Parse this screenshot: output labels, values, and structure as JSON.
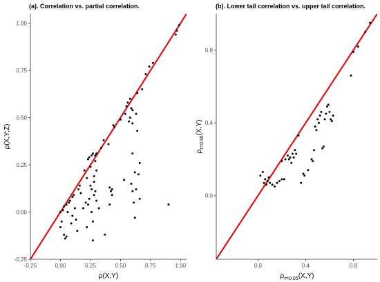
{
  "chart_data": [
    {
      "type": "scatter",
      "title": "(a). Correlation vs. partial correlation.",
      "xlabel": "ρ(X,Y)",
      "ylabel": "ρ(X,Y;Z)",
      "xlim": [
        -0.25,
        1.05
      ],
      "ylim": [
        -0.25,
        1.05
      ],
      "xticks": [
        -0.25,
        0.0,
        0.25,
        0.5,
        0.75,
        1.0
      ],
      "xtick_labels": [
        "-0.25",
        "0.00",
        "0.25",
        "0.50",
        "0.75",
        "1.00"
      ],
      "yticks": [
        -0.25,
        0.0,
        0.25,
        0.5,
        0.75,
        1.0
      ],
      "ytick_labels": [
        "-0.25",
        "0.00",
        "0.25",
        "0.50",
        "0.75",
        "1.00"
      ],
      "grid": false,
      "reference_line": {
        "type": "identity",
        "color": "#dd1111"
      },
      "point_color": "#000000",
      "points": [
        [
          0.0,
          -0.08
        ],
        [
          0.01,
          -0.05
        ],
        [
          0.0,
          0.0
        ],
        [
          0.02,
          0.01
        ],
        [
          0.03,
          0.03
        ],
        [
          0.05,
          0.04
        ],
        [
          0.03,
          -0.12
        ],
        [
          0.04,
          -0.14
        ],
        [
          0.05,
          -0.13
        ],
        [
          0.06,
          0.0
        ],
        [
          0.07,
          0.05
        ],
        [
          0.08,
          0.06
        ],
        [
          0.1,
          0.08
        ],
        [
          0.11,
          0.09
        ],
        [
          0.1,
          -0.02
        ],
        [
          0.12,
          0.02
        ],
        [
          0.09,
          -0.06
        ],
        [
          0.13,
          -0.04
        ],
        [
          0.15,
          0.12
        ],
        [
          0.16,
          0.14
        ],
        [
          0.17,
          0.1
        ],
        [
          0.14,
          -0.1
        ],
        [
          0.19,
          0.02
        ],
        [
          0.2,
          0.22
        ],
        [
          0.22,
          0.18
        ],
        [
          0.21,
          0.05
        ],
        [
          0.22,
          -0.08
        ],
        [
          0.23,
          0.28
        ],
        [
          0.24,
          0.29
        ],
        [
          0.25,
          0.24
        ],
        [
          0.26,
          0.3
        ],
        [
          0.27,
          0.31
        ],
        [
          0.25,
          0.14
        ],
        [
          0.26,
          0.12
        ],
        [
          0.28,
          0.09
        ],
        [
          0.24,
          0.07
        ],
        [
          0.23,
          0.04
        ],
        [
          0.26,
          0.0
        ],
        [
          0.27,
          -0.05
        ],
        [
          0.27,
          -0.15
        ],
        [
          0.29,
          0.3
        ],
        [
          0.3,
          0.31
        ],
        [
          0.29,
          0.27
        ],
        [
          0.3,
          0.22
        ],
        [
          0.28,
          0.19
        ],
        [
          0.28,
          0.16
        ],
        [
          0.29,
          0.11
        ],
        [
          0.3,
          0.06
        ],
        [
          0.32,
          0.02
        ],
        [
          0.34,
          0.34
        ],
        [
          0.36,
          0.38
        ],
        [
          0.37,
          -0.12
        ],
        [
          0.4,
          0.36
        ],
        [
          0.41,
          0.13
        ],
        [
          0.42,
          0.11
        ],
        [
          0.43,
          0.09
        ],
        [
          0.41,
          0.04
        ],
        [
          0.44,
          0.46
        ],
        [
          0.45,
          0.45
        ],
        [
          0.43,
          0.12
        ],
        [
          0.5,
          0.49
        ],
        [
          0.53,
          0.17
        ],
        [
          0.54,
          0.52
        ],
        [
          0.55,
          0.56
        ],
        [
          0.56,
          0.58
        ],
        [
          0.57,
          0.48
        ],
        [
          0.58,
          0.5
        ],
        [
          0.59,
          0.55
        ],
        [
          0.6,
          0.47
        ],
        [
          0.6,
          0.54
        ],
        [
          0.58,
          0.6
        ],
        [
          0.59,
          0.15
        ],
        [
          0.6,
          0.11
        ],
        [
          0.61,
          0.05
        ],
        [
          0.6,
          0.31
        ],
        [
          0.62,
          0.21
        ],
        [
          0.63,
          0.52
        ],
        [
          0.63,
          0.12
        ],
        [
          0.64,
          0.63
        ],
        [
          0.64,
          0.43
        ],
        [
          0.65,
          0.2
        ],
        [
          0.66,
          0.26
        ],
        [
          0.66,
          0.07
        ],
        [
          0.62,
          -0.03
        ],
        [
          0.68,
          0.65
        ],
        [
          0.71,
          0.73
        ],
        [
          0.74,
          0.77
        ],
        [
          0.77,
          0.79
        ],
        [
          0.9,
          0.04
        ],
        [
          0.96,
          0.94
        ],
        [
          0.97,
          0.96
        ],
        [
          0.99,
          0.99
        ]
      ]
    },
    {
      "type": "scatter",
      "title": "(b). Lower tail correlation vs. upper tail correlation.",
      "xlabel": "ρτ=0.05(X,Y)",
      "ylabel": "ρτ=0.95(X,Y)",
      "xlim": [
        -0.35,
        1.0
      ],
      "ylim": [
        -0.35,
        1.0
      ],
      "xticks": [
        0.0,
        0.4,
        0.8
      ],
      "xtick_labels": [
        "0.0",
        "0.4",
        "0.8"
      ],
      "yticks": [
        0.0,
        0.4,
        0.8
      ],
      "ytick_labels": [
        "0.0",
        "0.4",
        "0.8"
      ],
      "grid": false,
      "reference_line": {
        "type": "identity",
        "color": "#dd1111"
      },
      "point_color": "#000000",
      "points": [
        [
          0.02,
          0.11
        ],
        [
          0.04,
          0.13
        ],
        [
          0.05,
          0.07
        ],
        [
          0.06,
          0.09
        ],
        [
          0.07,
          0.06
        ],
        [
          0.08,
          0.08
        ],
        [
          0.09,
          0.1
        ],
        [
          0.1,
          0.07
        ],
        [
          0.12,
          0.06
        ],
        [
          0.14,
          0.05
        ],
        [
          0.16,
          0.07
        ],
        [
          0.18,
          0.08
        ],
        [
          0.2,
          0.09
        ],
        [
          0.22,
          0.09
        ],
        [
          0.2,
          0.19
        ],
        [
          0.23,
          0.2
        ],
        [
          0.25,
          0.22
        ],
        [
          0.26,
          0.2
        ],
        [
          0.27,
          0.21
        ],
        [
          0.28,
          0.18
        ],
        [
          0.3,
          0.21
        ],
        [
          0.31,
          0.25
        ],
        [
          0.29,
          0.23
        ],
        [
          0.32,
          0.23
        ],
        [
          0.34,
          0.33
        ],
        [
          0.36,
          0.07
        ],
        [
          0.38,
          0.12
        ],
        [
          0.39,
          0.11
        ],
        [
          0.42,
          0.14
        ],
        [
          0.45,
          0.2
        ],
        [
          0.46,
          0.19
        ],
        [
          0.47,
          0.25
        ],
        [
          0.48,
          0.38
        ],
        [
          0.49,
          0.36
        ],
        [
          0.5,
          0.42
        ],
        [
          0.51,
          0.4
        ],
        [
          0.52,
          0.44
        ],
        [
          0.53,
          0.46
        ],
        [
          0.54,
          0.26
        ],
        [
          0.55,
          0.27
        ],
        [
          0.56,
          0.42
        ],
        [
          0.57,
          0.45
        ],
        [
          0.58,
          0.49
        ],
        [
          0.59,
          0.5
        ],
        [
          0.6,
          0.46
        ],
        [
          0.61,
          0.42
        ],
        [
          0.62,
          0.41
        ],
        [
          0.63,
          0.44
        ],
        [
          0.78,
          0.66
        ],
        [
          0.8,
          0.79
        ],
        [
          0.84,
          0.82
        ],
        [
          0.9,
          0.9
        ],
        [
          0.94,
          0.95
        ]
      ]
    }
  ]
}
